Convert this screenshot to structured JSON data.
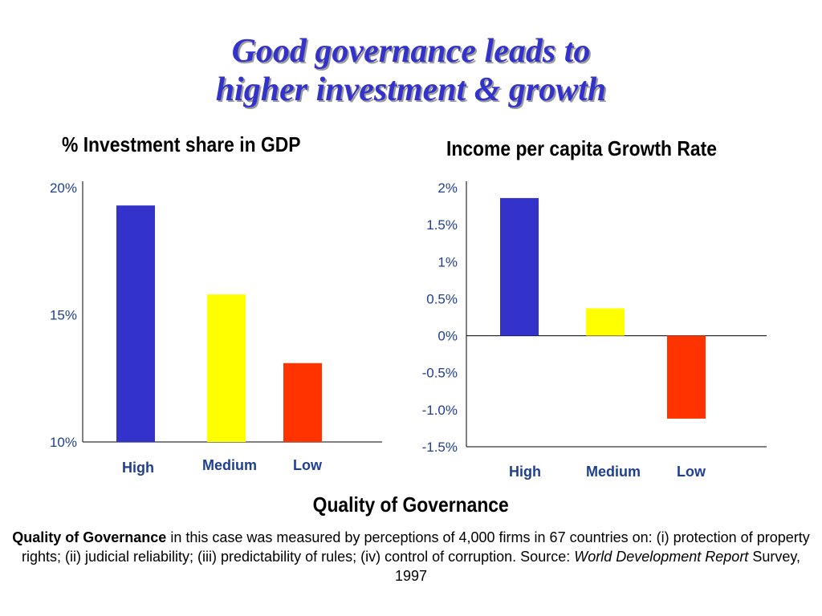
{
  "title": {
    "line1": "Good governance leads to",
    "line2": "higher investment & growth"
  },
  "colors": {
    "title": "#3333cc",
    "axis_text": "#1f3f8f",
    "high": "#3333cc",
    "medium": "#ffff00",
    "low": "#ff3300"
  },
  "chart_data": [
    {
      "type": "bar",
      "title": "% Investment share in GDP",
      "categories": [
        "High",
        "Medium",
        "Low"
      ],
      "values": [
        19.3,
        15.8,
        13.1
      ],
      "ylim": [
        10,
        20
      ],
      "yticks": [
        {
          "value": 20,
          "label": "20%"
        },
        {
          "value": 15,
          "label": "15%"
        },
        {
          "value": 10,
          "label": "10%"
        }
      ],
      "grid": false
    },
    {
      "type": "bar",
      "title": "Income per capita Growth Rate",
      "categories": [
        "High",
        "Medium",
        "Low"
      ],
      "values": [
        1.86,
        0.37,
        -1.12
      ],
      "ylim": [
        -1.5,
        2
      ],
      "yticks": [
        {
          "value": 2,
          "label": "2%"
        },
        {
          "value": 1.5,
          "label": "1.5%"
        },
        {
          "value": 1,
          "label": "1%"
        },
        {
          "value": 0.5,
          "label": "0.5%"
        },
        {
          "value": 0,
          "label": "0%"
        },
        {
          "value": -0.5,
          "label": "-0.5%"
        },
        {
          "value": -1,
          "label": "-1.0%"
        },
        {
          "value": -1.5,
          "label": "-1.5%"
        }
      ],
      "grid": false
    }
  ],
  "xlabel": "Quality of Governance",
  "footnote": {
    "bold_lead": "Quality of Governance",
    "text1": " in this case was measured by perceptions of 4,000 firms in 67 countries on: (i) protection of property rights; (ii) judicial reliability; (iii) predictability of rules; (iv) control of corruption.  Source: ",
    "source_italic": "World Development Report",
    "text2": " Survey, 1997"
  }
}
